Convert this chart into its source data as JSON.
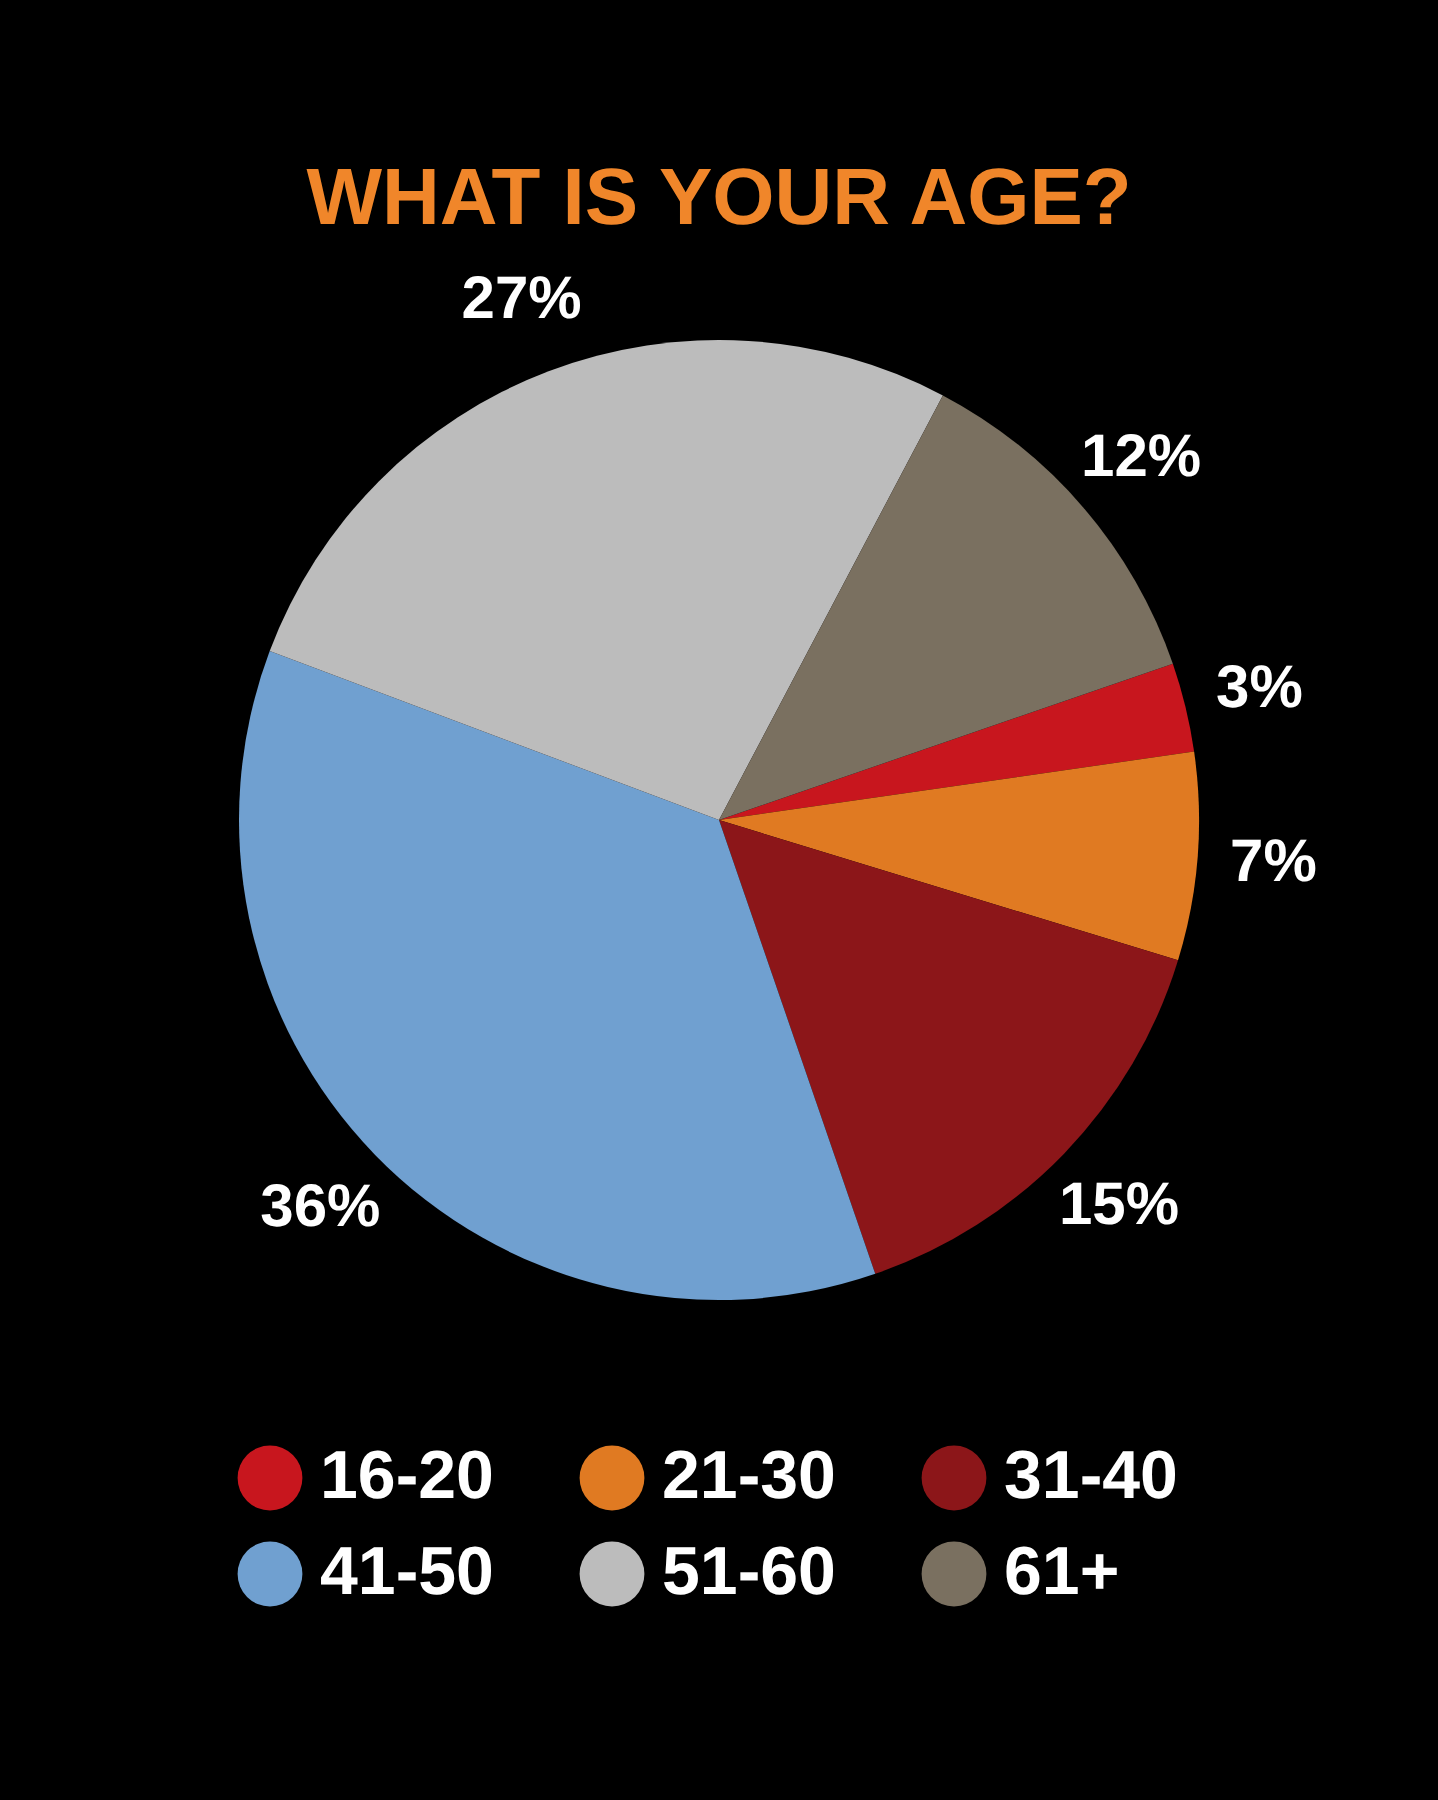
{
  "chart_data": {
    "type": "pie",
    "title": "WHAT IS YOUR AGE?",
    "categories": [
      "16-20",
      "21-30",
      "31-40",
      "41-50",
      "51-60",
      "61+"
    ],
    "values": [
      3,
      7,
      15,
      36,
      27,
      12
    ],
    "colors": [
      "#c8161e",
      "#e07a22",
      "#8c1619",
      "#70a0d0",
      "#bcbcbc",
      "#7a7060"
    ],
    "value_labels": [
      "3%",
      "7%",
      "15%",
      "36%",
      "27%",
      "12%"
    ],
    "legend": "bottom"
  }
}
